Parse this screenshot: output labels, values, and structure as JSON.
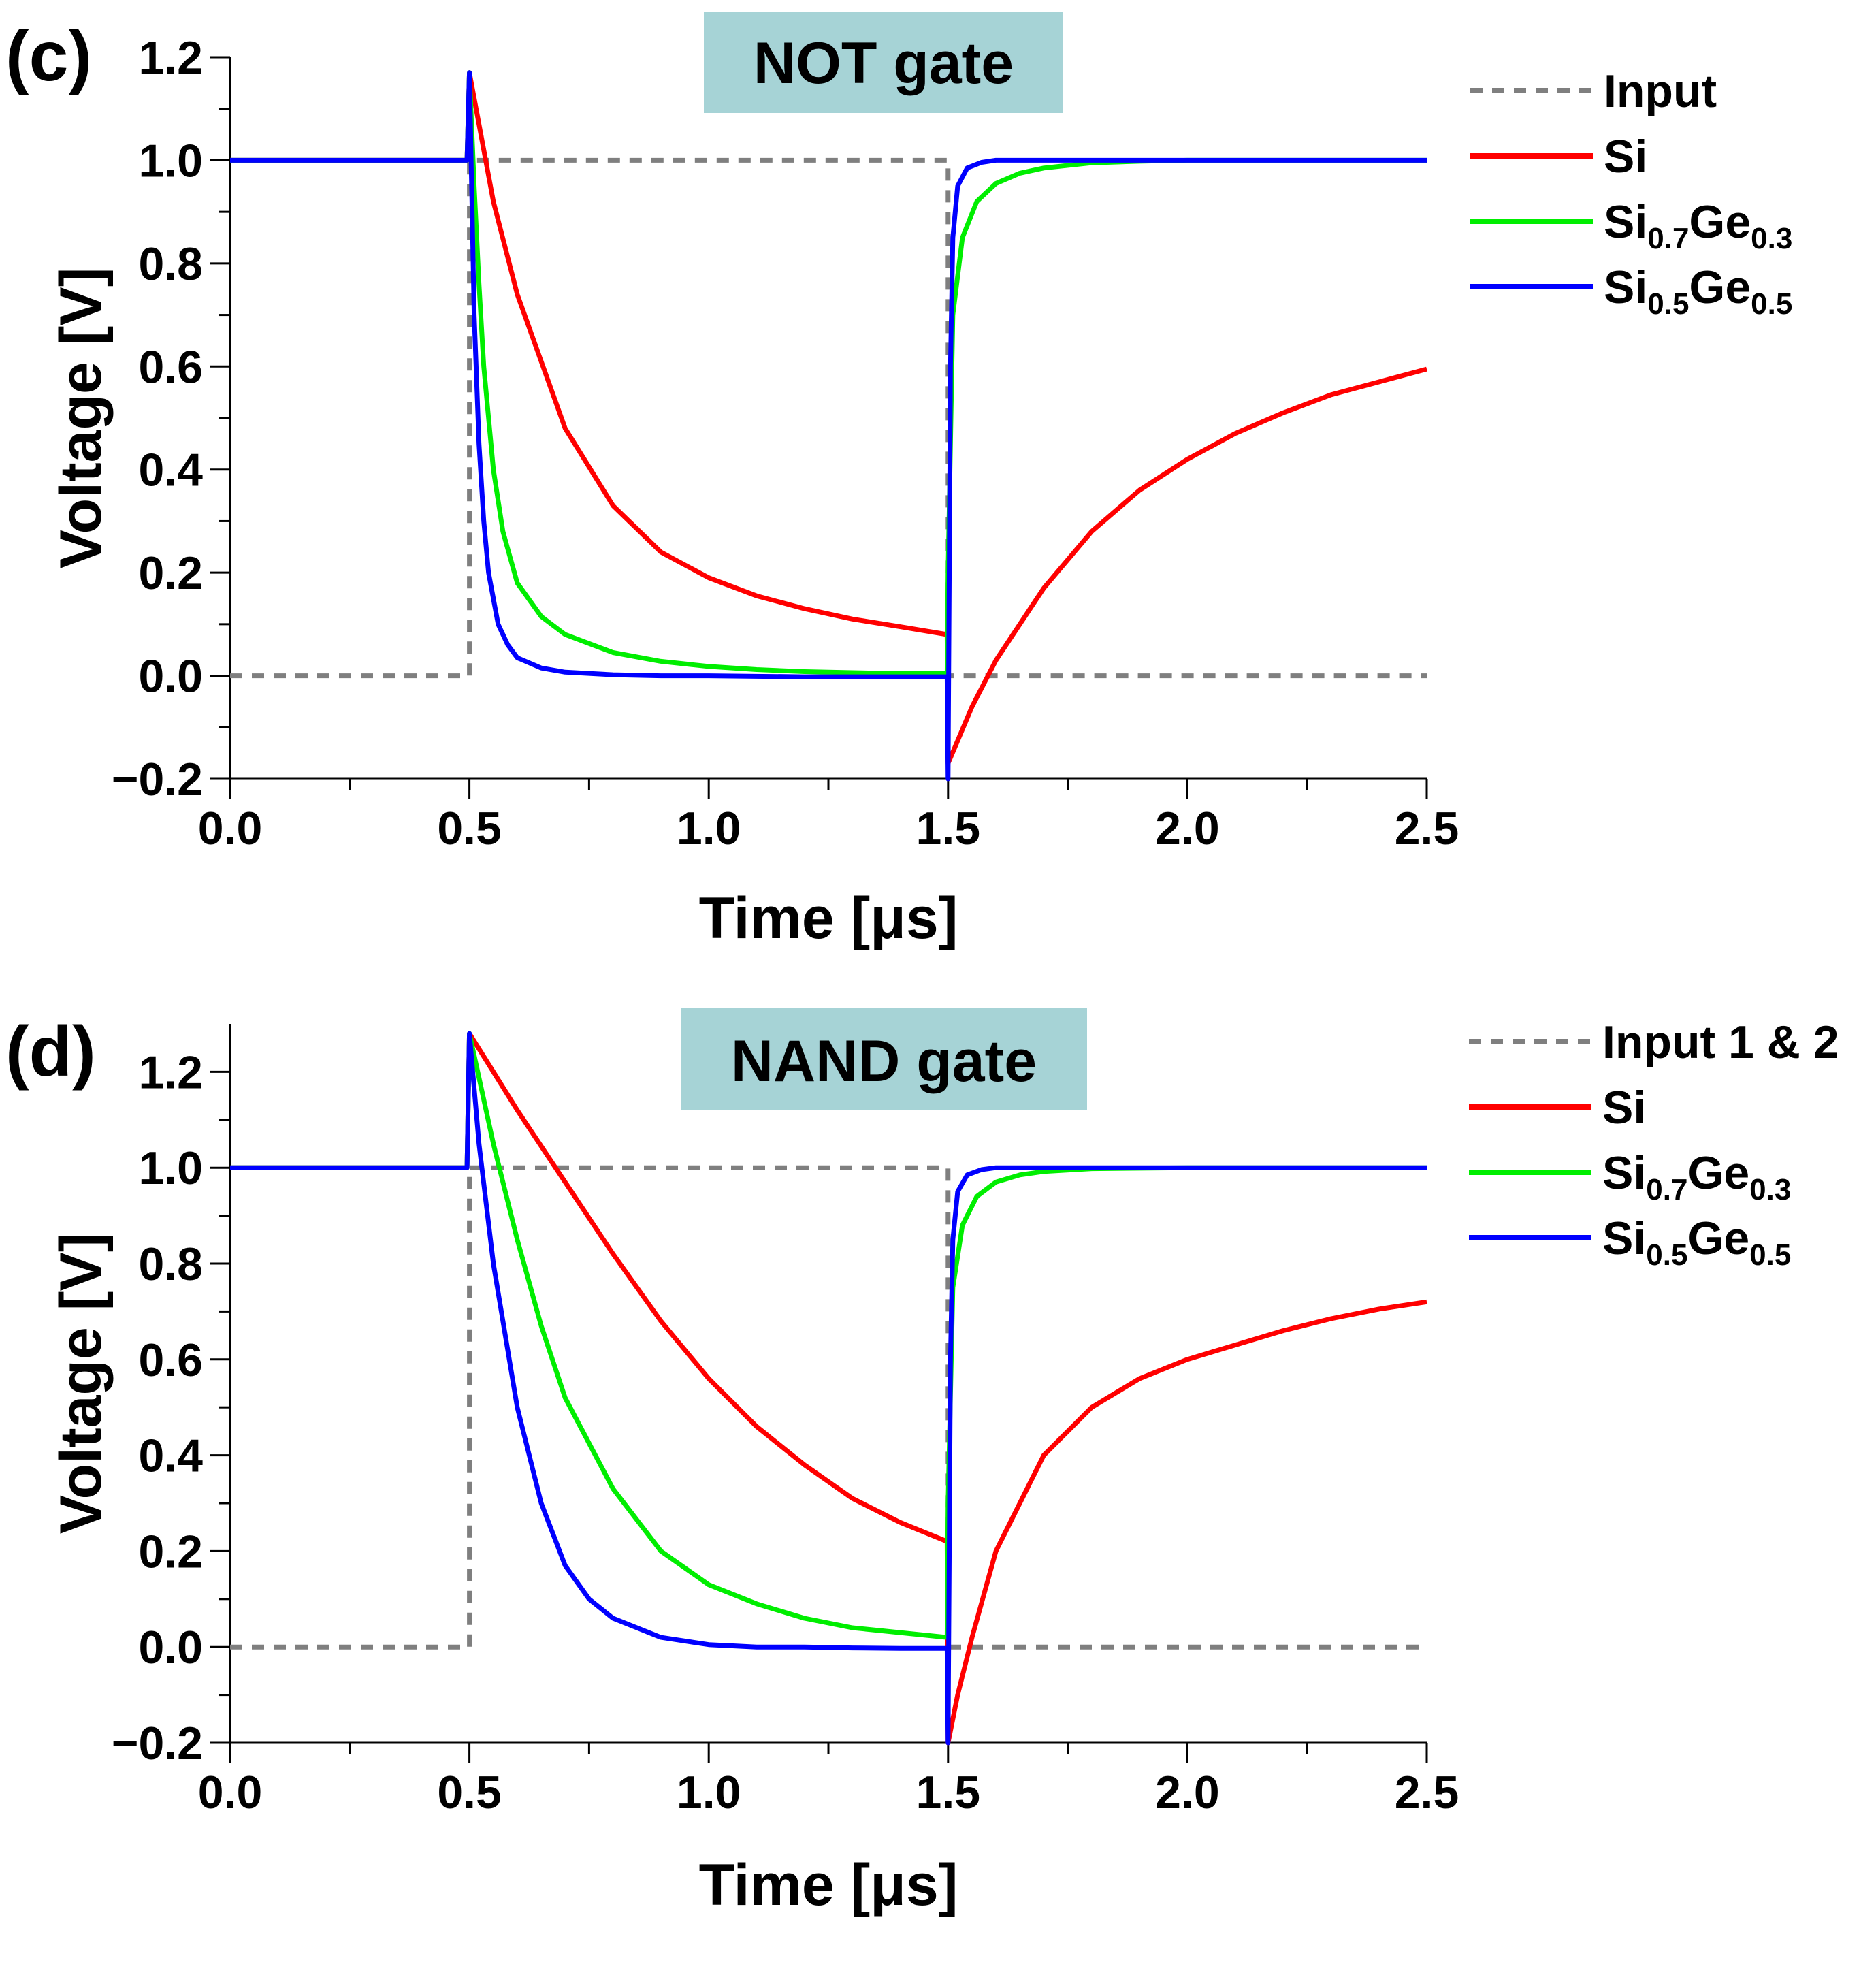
{
  "colors": {
    "input": "#7f7f7f",
    "si": "#ff0000",
    "sige03": "#00ee00",
    "sige05": "#0000ff",
    "title_box": "#a6d3d6"
  },
  "chart_data": [
    {
      "type": "line",
      "panel_label": "(c)",
      "title": "NOT gate",
      "xlabel": "Time [μs]",
      "ylabel": "Voltage [V]",
      "xlim": [
        0,
        2.5
      ],
      "ylim": [
        -0.2,
        1.2
      ],
      "xticks": [
        "0.0",
        "0.5",
        "1.0",
        "1.5",
        "2.0",
        "2.5"
      ],
      "yticks": [
        "−0.2",
        "0.0",
        "0.2",
        "0.4",
        "0.6",
        "0.8",
        "1.0",
        "1.2"
      ],
      "legend_position": "right",
      "series": [
        {
          "key": "input",
          "name": "Input",
          "style": "dashed",
          "x": [
            0,
            0.5,
            0.5,
            1.5,
            1.5,
            2.5
          ],
          "y": [
            0,
            0,
            1.0,
            1.0,
            0,
            0
          ]
        },
        {
          "key": "si",
          "name": "Si",
          "x": [
            0,
            0.495,
            0.5,
            0.55,
            0.6,
            0.7,
            0.8,
            0.9,
            1.0,
            1.1,
            1.2,
            1.3,
            1.4,
            1.498,
            1.5,
            1.55,
            1.6,
            1.7,
            1.8,
            1.9,
            2.0,
            2.1,
            2.2,
            2.3,
            2.4,
            2.5
          ],
          "y": [
            1.0,
            1.0,
            1.17,
            0.92,
            0.74,
            0.48,
            0.33,
            0.24,
            0.19,
            0.155,
            0.13,
            0.11,
            0.095,
            0.08,
            -0.17,
            -0.06,
            0.03,
            0.17,
            0.28,
            0.36,
            0.42,
            0.47,
            0.51,
            0.545,
            0.57,
            0.595
          ]
        },
        {
          "key": "sige03",
          "name": "Si0.7Ge0.3",
          "label_base": "Si",
          "label_sub1": "0.7",
          "label_mid": "Ge",
          "label_sub2": "0.3",
          "x": [
            0,
            0.495,
            0.5,
            0.51,
            0.52,
            0.53,
            0.55,
            0.57,
            0.6,
            0.65,
            0.7,
            0.8,
            0.9,
            1.0,
            1.1,
            1.2,
            1.3,
            1.4,
            1.498,
            1.5,
            1.51,
            1.53,
            1.56,
            1.6,
            1.65,
            1.7,
            1.8,
            1.9,
            2.0,
            2.5
          ],
          "y": [
            1.0,
            1.0,
            1.17,
            0.95,
            0.76,
            0.6,
            0.4,
            0.28,
            0.18,
            0.115,
            0.08,
            0.045,
            0.028,
            0.018,
            0.012,
            0.008,
            0.006,
            0.004,
            0.004,
            0.2,
            0.7,
            0.85,
            0.92,
            0.955,
            0.975,
            0.985,
            0.995,
            0.998,
            1.0,
            1.0
          ]
        },
        {
          "key": "sige05",
          "name": "Si0.5Ge0.5",
          "label_base": "Si",
          "label_sub1": "0.5",
          "label_mid": "Ge",
          "label_sub2": "0.5",
          "x": [
            0,
            0.495,
            0.5,
            0.51,
            0.52,
            0.53,
            0.54,
            0.56,
            0.58,
            0.6,
            0.65,
            0.7,
            0.8,
            0.9,
            1.0,
            1.2,
            1.4,
            1.498,
            1.5,
            1.505,
            1.51,
            1.52,
            1.54,
            1.57,
            1.6,
            1.7,
            2.5
          ],
          "y": [
            1.0,
            1.0,
            1.17,
            0.7,
            0.45,
            0.3,
            0.2,
            0.1,
            0.06,
            0.035,
            0.015,
            0.007,
            0.002,
            0.0,
            0.0,
            -0.002,
            -0.002,
            -0.002,
            -0.2,
            0.6,
            0.85,
            0.95,
            0.985,
            0.996,
            1.0,
            1.0,
            1.0
          ]
        }
      ]
    },
    {
      "type": "line",
      "panel_label": "(d)",
      "title": "NAND gate",
      "xlabel": "Time [μs]",
      "ylabel": "Voltage [V]",
      "xlim": [
        0,
        2.5
      ],
      "ylim": [
        -0.2,
        1.3
      ],
      "xticks": [
        "0.0",
        "0.5",
        "1.0",
        "1.5",
        "2.0",
        "2.5"
      ],
      "yticks": [
        "−0.2",
        "0.0",
        "0.2",
        "0.4",
        "0.6",
        "0.8",
        "1.0",
        "1.2"
      ],
      "legend_position": "right",
      "series": [
        {
          "key": "input",
          "name": "Input 1 & 2",
          "style": "dashed",
          "x": [
            0,
            0.5,
            0.5,
            1.5,
            1.5,
            2.5
          ],
          "y": [
            0,
            0,
            1.0,
            1.0,
            0,
            0
          ]
        },
        {
          "key": "si",
          "name": "Si",
          "x": [
            0,
            0.495,
            0.5,
            0.55,
            0.6,
            0.7,
            0.8,
            0.9,
            1.0,
            1.1,
            1.2,
            1.3,
            1.4,
            1.498,
            1.5,
            1.52,
            1.55,
            1.6,
            1.7,
            1.8,
            1.9,
            2.0,
            2.1,
            2.2,
            2.3,
            2.4,
            2.5
          ],
          "y": [
            1.0,
            1.0,
            1.28,
            1.2,
            1.12,
            0.97,
            0.82,
            0.68,
            0.56,
            0.46,
            0.38,
            0.31,
            0.26,
            0.22,
            -0.2,
            -0.1,
            0.02,
            0.2,
            0.4,
            0.5,
            0.56,
            0.6,
            0.63,
            0.66,
            0.685,
            0.705,
            0.72
          ]
        },
        {
          "key": "sige03",
          "name": "Si0.7Ge0.3",
          "label_base": "Si",
          "label_sub1": "0.7",
          "label_mid": "Ge",
          "label_sub2": "0.3",
          "x": [
            0,
            0.495,
            0.5,
            0.55,
            0.6,
            0.65,
            0.7,
            0.8,
            0.9,
            1.0,
            1.1,
            1.2,
            1.3,
            1.4,
            1.498,
            1.5,
            1.51,
            1.53,
            1.56,
            1.6,
            1.65,
            1.7,
            1.8,
            2.0,
            2.5
          ],
          "y": [
            1.0,
            1.0,
            1.28,
            1.05,
            0.85,
            0.67,
            0.52,
            0.33,
            0.2,
            0.13,
            0.09,
            0.06,
            0.04,
            0.03,
            0.02,
            0.3,
            0.75,
            0.88,
            0.94,
            0.97,
            0.985,
            0.992,
            0.998,
            1.0,
            1.0
          ]
        },
        {
          "key": "sige05",
          "name": "Si0.5Ge0.5",
          "label_base": "Si",
          "label_sub1": "0.5",
          "label_mid": "Ge",
          "label_sub2": "0.5",
          "x": [
            0,
            0.495,
            0.5,
            0.52,
            0.55,
            0.6,
            0.65,
            0.7,
            0.75,
            0.8,
            0.9,
            1.0,
            1.1,
            1.2,
            1.3,
            1.4,
            1.498,
            1.5,
            1.505,
            1.51,
            1.52,
            1.54,
            1.57,
            1.6,
            1.7,
            2.5
          ],
          "y": [
            1.0,
            1.0,
            1.28,
            1.05,
            0.8,
            0.5,
            0.3,
            0.17,
            0.1,
            0.06,
            0.02,
            0.005,
            0.0,
            0.0,
            -0.002,
            -0.003,
            -0.003,
            -0.2,
            0.6,
            0.85,
            0.95,
            0.985,
            0.996,
            1.0,
            1.0,
            1.0
          ]
        }
      ]
    }
  ]
}
